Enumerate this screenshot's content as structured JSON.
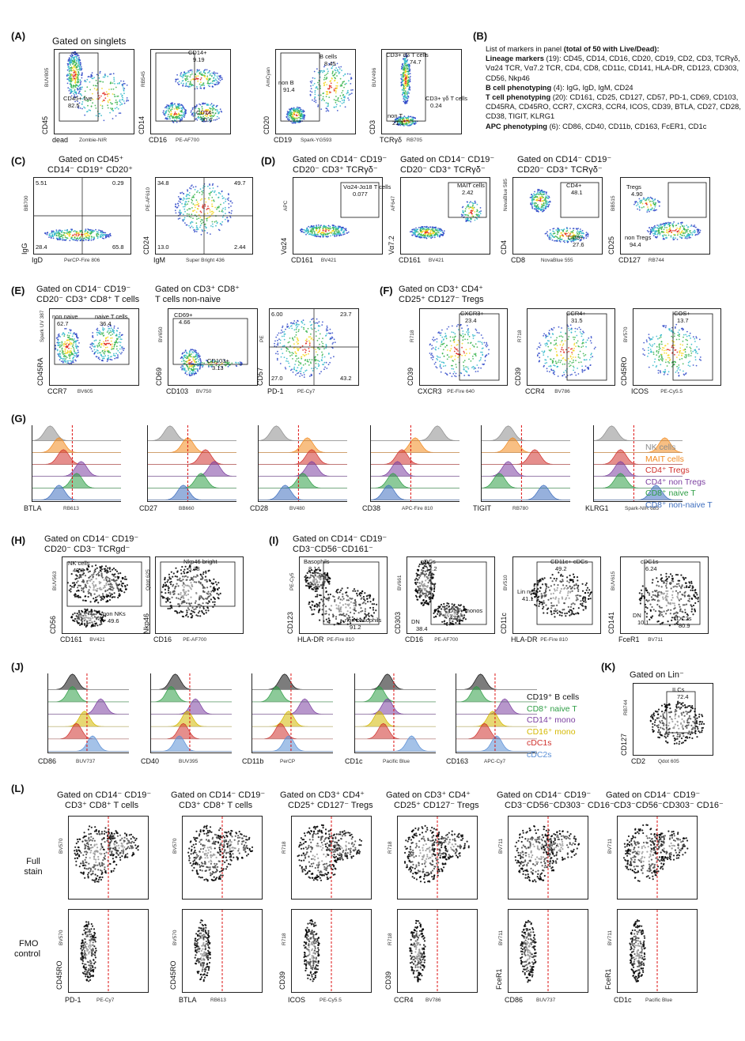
{
  "panels": {
    "A": {
      "label": "(A)",
      "title": "Gated on singlets",
      "plots": [
        {
          "x": "dead",
          "xs": "Zombie-NIR",
          "y": "CD45",
          "ys": "BUV805",
          "gates": [
            {
              "t": "CD45+ live",
              "v": "82.5"
            }
          ]
        },
        {
          "x": "CD16",
          "xs": "PE-AF700",
          "y": "CD14",
          "ys": "RB545",
          "gates": [
            {
              "t": "CD14+",
              "v": "9.19"
            },
            {
              "t": "CD14-",
              "v": "90.6"
            }
          ]
        },
        {
          "x": "CD19",
          "xs": "Spark-YG593",
          "y": "CD20",
          "ys": "AmCyan",
          "gates": [
            {
              "t": "B cells",
              "v": "8.45"
            },
            {
              "t": "non B",
              "v": "91.4"
            }
          ]
        },
        {
          "x": "TCRγδ",
          "xs": "RB705",
          "y": "CD3",
          "ys": "BUV496",
          "gates": [
            {
              "t": "CD3+ αβ T cells",
              "v": "74.7"
            },
            {
              "t": "CD3+ γδ T cells",
              "v": "0.24"
            },
            {
              "t": "non T",
              "v": "21.1"
            }
          ]
        }
      ]
    },
    "B": {
      "label": "(B)",
      "intro": "List of markers in panel",
      "intro_bold": "(total of 50 with Live/Dead):",
      "sections": [
        {
          "h": "Lineage markers",
          "n": "(19):",
          "t": "CD45, CD14, CD16, CD20, CD19, CD2, CD3, TCRγδ, Vα24 TCR, Vα7.2 TCR, CD4, CD8, CD11c, CD141, HLA-DR, CD123, CD303, CD56, Nkp46"
        },
        {
          "h": "B cell phenotyping",
          "n": "(4):",
          "t": "IgG, IgD, IgM, CD24"
        },
        {
          "h": "T cell phenotyping",
          "n": "(20):",
          "t": "CD161, CD25, CD127, CD57, PD-1, CD69, CD103, CD45RA, CD45RO, CCR7, CXCR3, CCR4, ICOS, CD39, BTLA, CD27, CD28, CD38, TIGIT, KLRG1"
        },
        {
          "h": "APC phenotyping",
          "n": "(6):",
          "t": "CD86, CD40, CD11b, CD163, FcER1, CD1c"
        }
      ]
    },
    "C": {
      "label": "(C)",
      "title1": "Gated on CD45⁺",
      "title2": "CD14⁻ CD19⁺ CD20⁺",
      "plots": [
        {
          "x": "IgD",
          "xs": "PerCP-Fire 806",
          "y": "IgG",
          "ys": "BB700",
          "q": [
            "5.51",
            "0.29",
            "28.4",
            "65.8"
          ]
        },
        {
          "x": "IgM",
          "xs": "Super Bright 436",
          "y": "CD24",
          "ys": "PE-AF610",
          "q": [
            "34.8",
            "49.7",
            "13.0",
            "2.44"
          ]
        }
      ]
    },
    "D": {
      "label": "(D)",
      "title1": "Gated on CD14⁻ CD19⁻",
      "title2": "CD20⁻ CD3⁺ TCRγδ⁻",
      "plots": [
        {
          "x": "CD161",
          "xs": "BV421",
          "y": "Vα24",
          "ys": "APC",
          "gates": [
            {
              "t": "Vα24-Jα18 T cells",
              "v": "0.077"
            }
          ]
        },
        {
          "x": "CD161",
          "xs": "BV421",
          "y": "Vα7.2",
          "ys": "AF647",
          "gates": [
            {
              "t": "MAIT cells",
              "v": "2.42"
            }
          ]
        },
        {
          "x": "CD8",
          "xs": "NovaBlue 555",
          "y": "CD4",
          "ys": "NovaBlue 585",
          "gates": [
            {
              "t": "CD4+",
              "v": "48.1"
            },
            {
              "t": "CD8+",
              "v": "27.6"
            }
          ]
        },
        {
          "x": "CD127",
          "xs": "RB744",
          "y": "CD25",
          "ys": "BB515",
          "gates": [
            {
              "t": "Tregs",
              "v": "4.90"
            },
            {
              "t": "non Tregs",
              "v": "94.4"
            }
          ]
        }
      ]
    },
    "E": {
      "label": "(E)",
      "title1": "Gated on CD14⁻ CD19⁻",
      "title2": "CD20⁻ CD3⁺ CD8⁺ T cells",
      "title3": "Gated on CD3⁺ CD8⁺",
      "title4": "T cells non-naive",
      "plots": [
        {
          "x": "CCR7",
          "xs": "BV605",
          "y": "CD45RA",
          "ys": "Spark UV 387",
          "gates": [
            {
              "t": "non naive",
              "v": "62.7"
            },
            {
              "t": "naive T cells",
              "v": "36.4"
            }
          ]
        },
        {
          "x": "CD103",
          "xs": "BV750",
          "y": "CD69",
          "ys": "BV650",
          "gates": [
            {
              "t": "CD69+",
              "v": "4.66"
            },
            {
              "t": "CD103+",
              "v": "3.13"
            }
          ]
        },
        {
          "x": "PD-1",
          "xs": "PE-Cy7",
          "y": "CD57",
          "ys": "PE",
          "q": [
            "6.00",
            "23.7",
            "27.0",
            "43.2"
          ]
        }
      ]
    },
    "F": {
      "label": "(F)",
      "title1": "Gated on CD3⁺ CD4⁺",
      "title2": "CD25⁺ CD127⁻ Tregs",
      "plots": [
        {
          "x": "CXCR3",
          "xs": "PE-Fire 640",
          "y": "CD39",
          "ys": "R718",
          "gates": [
            {
              "t": "CXCR3+",
              "v": "23.4"
            }
          ]
        },
        {
          "x": "CCR4",
          "xs": "BV786",
          "y": "CD39",
          "ys": "R718",
          "gates": [
            {
              "t": "CCR4+",
              "v": "31.5"
            }
          ]
        },
        {
          "x": "ICOS",
          "xs": "PE-Cy5.5",
          "y": "CD45RO",
          "ys": "BV570",
          "gates": [
            {
              "t": "ICOS+",
              "v": "13.7"
            }
          ]
        }
      ]
    },
    "G": {
      "label": "(G)",
      "plots": [
        {
          "x": "BTLA",
          "xs": "RB613"
        },
        {
          "x": "CD27",
          "xs": "BB660"
        },
        {
          "x": "CD28",
          "xs": "BV480"
        },
        {
          "x": "CD38",
          "xs": "APC-Fire 810"
        },
        {
          "x": "TIGIT",
          "xs": "RB780"
        },
        {
          "x": "KLRG1",
          "xs": "Spark-NIR 685"
        }
      ],
      "legend": [
        {
          "t": "NK cells",
          "c": "#8c8c8c"
        },
        {
          "t": "MAIT cells",
          "c": "#f28a1e"
        },
        {
          "t": "CD4⁺ Tregs",
          "c": "#d0312d"
        },
        {
          "t": "CD4⁺ non Tregs",
          "c": "#7b3fa0"
        },
        {
          "t": "CD8⁺ naive T",
          "c": "#2e9e45"
        },
        {
          "t": "CD8⁺ non-naive T",
          "c": "#3f6fbf"
        }
      ]
    },
    "H": {
      "label": "(H)",
      "title1": "Gated on CD14⁻ CD19⁻",
      "title2": "CD20⁻ CD3⁻ TCRgd⁻",
      "plots": [
        {
          "x": "CD161",
          "xs": "BV421",
          "y": "CD56",
          "ys": "BUV563",
          "gates": [
            {
              "t": "NK cells",
              "v": "49.3"
            },
            {
              "t": "non NKs",
              "v": "49.6"
            }
          ]
        },
        {
          "x": "CD16",
          "xs": "PE-AF700",
          "y": "Nkp46",
          "ys": "Qdot 625",
          "gates": [
            {
              "t": "Nkp46 bright",
              "v": "5.78"
            }
          ]
        }
      ]
    },
    "I": {
      "label": "(I)",
      "title1": "Gated on CD14⁻ CD19⁻",
      "title2": "CD3⁻CD56⁻CD161⁻",
      "plots": [
        {
          "x": "HLA-DR",
          "xs": "PE-Fire 810",
          "y": "CD123",
          "ys": "PE-Cy5",
          "gates": [
            {
              "t": "Basophils",
              "v": "8.14"
            },
            {
              "t": "non basophils",
              "v": "91.2"
            }
          ]
        },
        {
          "x": "CD16",
          "xs": "PE-AF700",
          "y": "CD303",
          "ys": "BV661",
          "gates": [
            {
              "t": "pDCs",
              "v": "17.2"
            },
            {
              "t": "CD16+ monos",
              "v": "42.5"
            },
            {
              "t": "DN",
              "v": "38.4"
            }
          ]
        },
        {
          "x": "HLA-DR",
          "xs": "PE-Fire 810",
          "y": "CD11c",
          "ys": "BV510",
          "gates": [
            {
              "t": "CD11c+ cDCs",
              "v": "49.2"
            },
            {
              "t": "Lin neg-",
              "v": "41.1"
            }
          ]
        },
        {
          "x": "FceR1",
          "xs": "BV711",
          "y": "CD141",
          "ys": "BUV615",
          "gates": [
            {
              "t": "cDC1s",
              "v": "6.24"
            },
            {
              "t": "DN",
              "v": "10.1"
            },
            {
              "t": "cDC2s",
              "v": "80.9"
            }
          ]
        }
      ]
    },
    "J": {
      "label": "(J)",
      "plots": [
        {
          "x": "CD86",
          "xs": "BUV737"
        },
        {
          "x": "CD40",
          "xs": "BUV395"
        },
        {
          "x": "CD11b",
          "xs": "PerCP"
        },
        {
          "x": "CD1c",
          "xs": "Pacific Blue"
        },
        {
          "x": "CD163",
          "xs": "APC-Cy7"
        }
      ],
      "legend": [
        {
          "t": "CD19⁺ B cells",
          "c": "#111111"
        },
        {
          "t": "CD8⁺ naive T",
          "c": "#2e9e45"
        },
        {
          "t": "CD14⁺ mono",
          "c": "#7b3fa0"
        },
        {
          "t": "CD16⁺ mono",
          "c": "#d4b800"
        },
        {
          "t": "cDC1s",
          "c": "#d0312d"
        },
        {
          "t": "cDC2s",
          "c": "#5a8fd6"
        }
      ]
    },
    "K": {
      "label": "(K)",
      "title": "Gated on Lin⁻",
      "plot": {
        "x": "CD2",
        "xs": "Qdot 605",
        "y": "CD127",
        "ys": "RB744",
        "gates": [
          {
            "t": "ILCs",
            "v": "72.4"
          }
        ]
      }
    },
    "L": {
      "label": "(L)",
      "row1": "Full stain",
      "row2a": "FMO",
      "row2b": "control",
      "cols": [
        {
          "t1": "Gated on CD14⁻ CD19⁻",
          "t2": "CD3⁺ CD8⁺ T cells",
          "x": "PD-1",
          "xs": "PE-Cy7",
          "y": "CD45RO",
          "ys": "BV570"
        },
        {
          "t1": "Gated on CD14⁻ CD19⁻",
          "t2": "CD3⁺ CD8⁺ T cells",
          "x": "BTLA",
          "xs": "RB613",
          "y": "CD45RO",
          "ys": "BV570"
        },
        {
          "t1": "Gated on CD3⁺ CD4⁺",
          "t2": "CD25⁺ CD127⁻ Tregs",
          "x": "ICOS",
          "xs": "PE-Cy5.5",
          "y": "CD39",
          "ys": "R718"
        },
        {
          "t1": "Gated on CD3⁺ CD4⁺",
          "t2": "CD25⁺ CD127⁻ Tregs",
          "x": "CCR4",
          "xs": "BV786",
          "y": "CD39",
          "ys": "R718"
        },
        {
          "t1": "Gated on CD14⁻ CD19⁻",
          "t2": "CD3⁻CD56⁻CD303⁻ CD16⁻",
          "x": "CD86",
          "xs": "BUV737",
          "y": "FceR1",
          "ys": "BV711"
        },
        {
          "t1": "Gated on CD14⁻ CD19⁻",
          "t2": "CD3⁻CD56⁻CD303⁻ CD16⁻",
          "x": "CD1c",
          "xs": "Pacific Blue",
          "y": "FceR1",
          "ys": "BV711"
        }
      ]
    }
  }
}
